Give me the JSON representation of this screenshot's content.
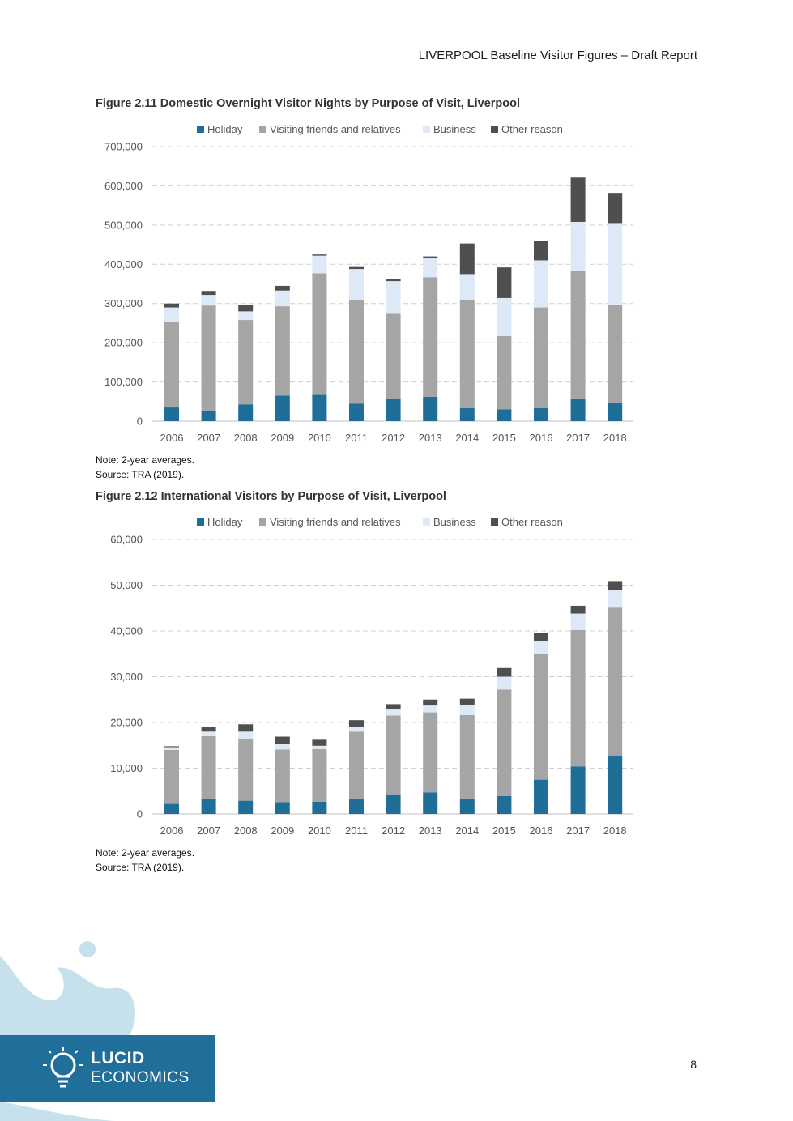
{
  "header": {
    "title": "LIVERPOOL Baseline Visitor Figures – Draft Report"
  },
  "page_number": "8",
  "logo": {
    "line1": "LUCID",
    "line2": "ECONOMICS"
  },
  "colors": {
    "holiday": "#1f6e97",
    "vfr": "#a5a5a5",
    "business": "#dde9f6",
    "other": "#4f4f4f",
    "grid": "#d0d0d0",
    "logo_blue": "#1f6f9a",
    "logo_splash": "#c7e1ec"
  },
  "figures": [
    {
      "title": "Figure 2.11 Domestic Overnight Visitor Nights by Purpose of Visit, Liverpool",
      "note": "Note: 2-year averages.",
      "source": "Source: TRA (2019).",
      "legend": [
        "Holiday",
        "Visiting friends and relatives",
        "Business",
        "Other reason"
      ]
    },
    {
      "title": "Figure 2.12 International Visitors by Purpose of Visit, Liverpool",
      "note": "Note: 2-year averages.",
      "source": "Source: TRA (2019).",
      "legend": [
        "Holiday",
        "Visiting friends and relatives",
        "Business",
        "Other reason"
      ]
    }
  ],
  "chart_data": [
    {
      "type": "bar",
      "stacked": true,
      "title": "Figure 2.11 Domestic Overnight Visitor Nights by Purpose of Visit, Liverpool",
      "categories": [
        "2006",
        "2007",
        "2008",
        "2009",
        "2010",
        "2011",
        "2012",
        "2013",
        "2014",
        "2015",
        "2016",
        "2017",
        "2018"
      ],
      "series": [
        {
          "name": "Holiday",
          "values": [
            35000,
            25000,
            43000,
            65000,
            67000,
            45000,
            57000,
            62000,
            33000,
            30000,
            33000,
            58000,
            47000
          ]
        },
        {
          "name": "Visiting friends and relatives",
          "values": [
            217000,
            270000,
            215000,
            228000,
            310000,
            263000,
            217000,
            305000,
            275000,
            187000,
            257000,
            325000,
            250000
          ]
        },
        {
          "name": "Business",
          "values": [
            38000,
            27000,
            22000,
            40000,
            45000,
            80000,
            83000,
            48000,
            67000,
            97000,
            120000,
            125000,
            208000
          ]
        },
        {
          "name": "Other reason",
          "values": [
            10000,
            10000,
            17000,
            12000,
            3000,
            5000,
            6000,
            5000,
            78000,
            78000,
            50000,
            113000,
            77000
          ]
        }
      ],
      "yticks": [
        "0",
        "100,000",
        "200,000",
        "300,000",
        "400,000",
        "500,000",
        "600,000",
        "700,000"
      ],
      "ylim": [
        0,
        700000
      ],
      "grid": true,
      "legend_position": "top"
    },
    {
      "type": "bar",
      "stacked": true,
      "title": "Figure 2.12 International Visitors by Purpose of Visit, Liverpool",
      "categories": [
        "2006",
        "2007",
        "2008",
        "2009",
        "2010",
        "2011",
        "2012",
        "2013",
        "2014",
        "2015",
        "2016",
        "2017",
        "2018"
      ],
      "series": [
        {
          "name": "Holiday",
          "values": [
            2200,
            3400,
            2900,
            2600,
            2700,
            3400,
            4300,
            4700,
            3400,
            3900,
            7500,
            10400,
            12800
          ]
        },
        {
          "name": "Visiting friends and relatives",
          "values": [
            11800,
            13600,
            13600,
            11500,
            11500,
            14600,
            17200,
            17500,
            18200,
            23300,
            27400,
            29800,
            32300
          ]
        },
        {
          "name": "Business",
          "values": [
            600,
            1000,
            1500,
            1200,
            700,
            1000,
            1500,
            1500,
            2300,
            2800,
            2900,
            3600,
            3800
          ]
        },
        {
          "name": "Other reason",
          "values": [
            200,
            1000,
            1600,
            1600,
            1500,
            1500,
            1000,
            1300,
            1300,
            1900,
            1700,
            1700,
            2000
          ]
        }
      ],
      "yticks": [
        "0",
        "10,000",
        "20,000",
        "30,000",
        "40,000",
        "50,000",
        "60,000"
      ],
      "ylim": [
        0,
        60000
      ],
      "grid": true,
      "legend_position": "top"
    }
  ]
}
